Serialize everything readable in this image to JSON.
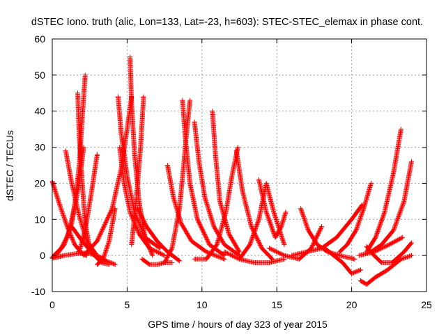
{
  "chart_data": {
    "type": "scatter",
    "title": "dSTEC Iono. truth (alic, Lon=133, Lat=-23, h=603): STEC-STEC_elemax in phase cont.",
    "xlabel": "GPS time / hours of day 323 of year 2015",
    "ylabel": "dSTEC  / TECUs",
    "xlim": [
      0,
      25
    ],
    "ylim": [
      -10,
      60
    ],
    "xticks": [
      0,
      5,
      10,
      15,
      20,
      25
    ],
    "yticks": [
      -10,
      0,
      10,
      20,
      30,
      40,
      50,
      60
    ],
    "grid": true,
    "marker": "+",
    "color": "#ff0000",
    "series": [
      {
        "x": [
          0.0,
          0.5,
          1.0,
          1.5,
          2.0,
          2.3
        ],
        "y": [
          20.5,
          14,
          8,
          3,
          0.5,
          0
        ]
      },
      {
        "x": [
          0.0,
          0.3,
          0.8,
          1.3,
          1.8,
          2.1
        ],
        "y": [
          -0.5,
          0.3,
          3,
          9,
          20,
          30
        ]
      },
      {
        "x": [
          0.9,
          1.3,
          1.8,
          2.3,
          2.9
        ],
        "y": [
          29,
          20,
          11,
          4,
          0.5
        ]
      },
      {
        "x": [
          0.0,
          0.8,
          1.6,
          2.3,
          3.0,
          3.6,
          4.2
        ],
        "y": [
          -0.8,
          0,
          0.5,
          0.7,
          0,
          -1.5,
          -2.5
        ]
      },
      {
        "x": [
          0.1,
          0.6,
          1.1,
          1.5,
          1.8,
          2.0,
          2.2
        ],
        "y": [
          0,
          2,
          6,
          14,
          25,
          38,
          50
        ]
      },
      {
        "x": [
          1.7,
          1.8,
          2.0,
          2.2,
          2.5,
          2.9
        ],
        "y": [
          45,
          33,
          20,
          9,
          2,
          0
        ]
      },
      {
        "x": [
          1.8,
          2.2,
          2.6,
          3.0
        ],
        "y": [
          1,
          7,
          17,
          28
        ]
      },
      {
        "x": [
          1.3,
          2.0,
          2.7,
          3.3,
          3.8
        ],
        "y": [
          8,
          4,
          0.5,
          -2,
          -2.5
        ]
      },
      {
        "x": [
          2.1,
          3.0,
          4.0,
          4.6,
          5.0,
          5.3
        ],
        "y": [
          0,
          4,
          13,
          24,
          35,
          44
        ]
      },
      {
        "x": [
          3.0,
          3.4,
          3.8,
          4.2
        ],
        "y": [
          -2.5,
          -1,
          4,
          13
        ]
      },
      {
        "x": [
          4.4,
          4.6,
          5.0,
          5.5,
          6.2,
          7.2
        ],
        "y": [
          44,
          34,
          22,
          12,
          5,
          2
        ]
      },
      {
        "x": [
          4.5,
          4.8,
          5.2,
          5.8,
          6.5,
          7.5
        ],
        "y": [
          30,
          20,
          12,
          6,
          2,
          0
        ]
      },
      {
        "x": [
          5.2,
          5.3,
          5.5,
          5.8,
          6.2,
          6.7
        ],
        "y": [
          55,
          42,
          28,
          15,
          5,
          0
        ]
      },
      {
        "x": [
          5.3,
          5.6,
          5.9,
          6.1
        ],
        "y": [
          3,
          15,
          30,
          44
        ]
      },
      {
        "x": [
          5.7,
          6.3,
          7.0,
          7.7,
          8.5
        ],
        "y": [
          13,
          8,
          4,
          1,
          -1.5
        ]
      },
      {
        "x": [
          6.0,
          6.5,
          7.0,
          7.5,
          8.0
        ],
        "y": [
          -1,
          -2.5,
          -2.5,
          -2,
          -2
        ]
      },
      {
        "x": [
          7.7,
          8.1,
          8.6,
          9.3,
          10.3,
          11.5
        ],
        "y": [
          25,
          16,
          9,
          4,
          1,
          -1
        ]
      },
      {
        "x": [
          7.5,
          8.0,
          8.5,
          8.8,
          9.0,
          9.2
        ],
        "y": [
          -2,
          2,
          13,
          26,
          35,
          43
        ]
      },
      {
        "x": [
          8.7,
          8.9,
          9.2,
          9.7,
          10.5,
          11.5
        ],
        "y": [
          43,
          32,
          20,
          10,
          3,
          0
        ]
      },
      {
        "x": [
          9.5,
          9.8,
          10.2,
          10.8,
          11.5,
          12.5
        ],
        "y": [
          37,
          26,
          16,
          8,
          3,
          0
        ]
      },
      {
        "x": [
          10.7,
          10.9,
          11.2,
          11.8,
          12.5
        ],
        "y": [
          40,
          28,
          15,
          6,
          1
        ]
      },
      {
        "x": [
          9.5,
          10.3,
          11.0,
          11.6,
          12.0,
          12.4
        ],
        "y": [
          -1,
          -1,
          3,
          12,
          22,
          30
        ]
      },
      {
        "x": [
          12.3,
          12.7,
          13.3,
          14.0,
          14.7
        ],
        "y": [
          29,
          18,
          8,
          2,
          -1
        ]
      },
      {
        "x": [
          11.5,
          12.5,
          13.5,
          14.5,
          15.5
        ],
        "y": [
          1,
          -1,
          -2,
          -2,
          -1
        ]
      },
      {
        "x": [
          12.5,
          13.2,
          13.8,
          14.3,
          14.8,
          15.5
        ],
        "y": [
          -1,
          3,
          10,
          20,
          12,
          3
        ]
      },
      {
        "x": [
          13.8,
          14.3,
          14.9,
          15.3,
          15.6
        ],
        "y": [
          21,
          12,
          5,
          8,
          12
        ]
      },
      {
        "x": [
          14.5,
          15.5,
          16.5,
          17.3,
          18.0
        ],
        "y": [
          2,
          0,
          -1,
          2,
          8
        ]
      },
      {
        "x": [
          16.6,
          17.1,
          17.7,
          18.4,
          19.2,
          20.2
        ],
        "y": [
          13,
          7,
          3,
          1,
          0,
          -1
        ]
      },
      {
        "x": [
          16.0,
          17.0,
          18.0,
          19.0,
          20.0,
          20.7
        ],
        "y": [
          0,
          1,
          2,
          5,
          10,
          14
        ]
      },
      {
        "x": [
          18.2,
          18.8,
          19.4,
          20.0,
          20.6
        ],
        "y": [
          2,
          0,
          -2,
          -5,
          -4
        ]
      },
      {
        "x": [
          19.2,
          19.7,
          20.3,
          20.8,
          21.3
        ],
        "y": [
          1,
          3,
          7,
          13,
          20
        ]
      },
      {
        "x": [
          20.6,
          21.0,
          21.6,
          22.4,
          23.3,
          24.0
        ],
        "y": [
          -7,
          -8,
          -6,
          -4,
          -1,
          0
        ]
      },
      {
        "x": [
          21.0,
          21.5,
          22.0,
          22.7,
          23.5,
          24.0
        ],
        "y": [
          2.5,
          0,
          -2,
          -2,
          1,
          3.5
        ]
      },
      {
        "x": [
          21.0,
          21.6,
          22.2,
          22.8,
          23.3
        ],
        "y": [
          1,
          5,
          12,
          23,
          35
        ]
      },
      {
        "x": [
          21.3,
          22.0,
          22.8,
          23.5,
          24.0
        ],
        "y": [
          1,
          3,
          7,
          15,
          26
        ]
      },
      {
        "x": [
          20.5,
          21.5,
          22.5,
          23.4
        ],
        "y": [
          0,
          1,
          3,
          5
        ]
      }
    ]
  }
}
